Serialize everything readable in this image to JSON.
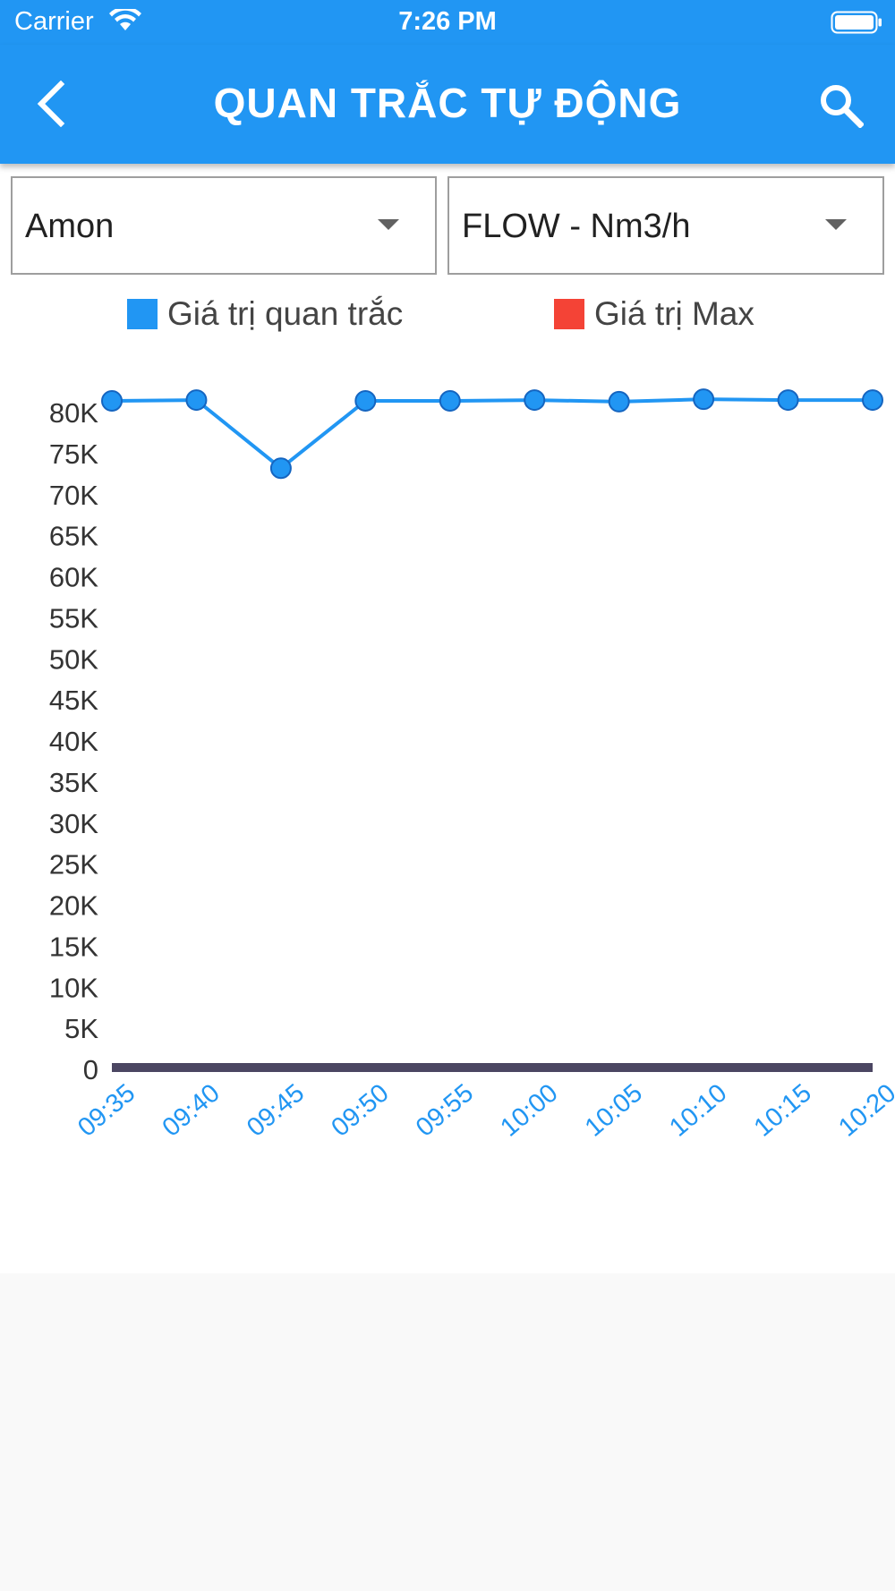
{
  "status_bar": {
    "carrier": "Carrier",
    "time": "7:26 PM"
  },
  "app_bar": {
    "title": "QUAN TRẮC TỰ ĐỘNG",
    "back_icon": "chevron-left-icon",
    "search_icon": "search-icon"
  },
  "filters": {
    "station": "Amon",
    "parameter": "FLOW - Nm3/h"
  },
  "legend": {
    "observed_label": "Giá trị quan trắc",
    "max_label": "Giá trị Max"
  },
  "colors": {
    "primary": "#2196f3",
    "observed": "#2196f3",
    "max": "#f44336",
    "max_line": "#4b4662"
  },
  "chart_data": {
    "type": "line",
    "categories": [
      "09:35",
      "09:40",
      "09:45",
      "09:50",
      "09:55",
      "10:00",
      "10:05",
      "10:10",
      "10:15",
      "10:20"
    ],
    "y_ticks": [
      "0",
      "5K",
      "10K",
      "15K",
      "20K",
      "25K",
      "30K",
      "35K",
      "40K",
      "45K",
      "50K",
      "55K",
      "60K",
      "65K",
      "70K",
      "75K",
      "80K"
    ],
    "ylim": [
      0,
      80000
    ],
    "series": [
      {
        "name": "Giá trị quan trắc",
        "values": [
          81200,
          81300,
          73000,
          81200,
          81200,
          81300,
          81100,
          81400,
          81300,
          81300
        ]
      },
      {
        "name": "Giá trị Max",
        "values": [
          0,
          0,
          0,
          0,
          0,
          0,
          0,
          0,
          0,
          0
        ]
      }
    ]
  }
}
